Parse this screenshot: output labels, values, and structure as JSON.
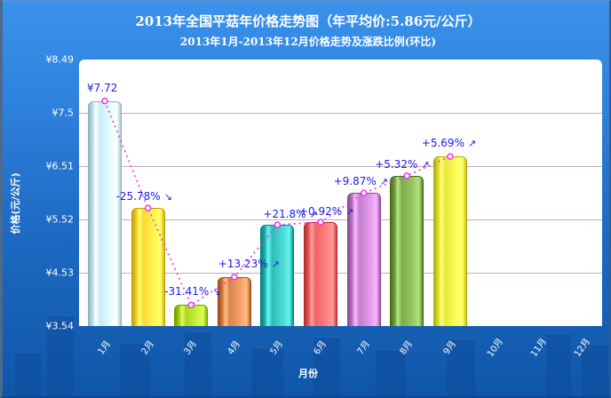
{
  "chart": {
    "title": "2013年全国平菇年价格走势图（年平均价:5.86元/公斤）",
    "subtitle": "2013年1月-2013年12月价格走势及涨跌比例(环比)",
    "ylabel": "价格(元/公斤)",
    "xlabel": "月份",
    "first_value_label": "¥7.72"
  },
  "chart_data": {
    "type": "bar",
    "title": "2013年全国平菇年价格走势图（年平均价:5.86元/公斤）",
    "subtitle": "2013年1月-2013年12月价格走势及涨跌比例(环比)",
    "xlabel": "月份",
    "ylabel": "价格(元/公斤)",
    "categories": [
      "1月",
      "2月",
      "3月",
      "4月",
      "5月",
      "6月",
      "7月",
      "8月",
      "9月",
      "10月",
      "11月",
      "12月"
    ],
    "values": [
      7.72,
      5.73,
      3.93,
      4.45,
      5.42,
      5.47,
      6.01,
      6.33,
      6.69,
      null,
      null,
      null
    ],
    "change_labels": [
      "¥7.72",
      "-25.78%",
      "-31.41%",
      "+13.23%",
      "+21.8%",
      "+0.92%",
      "+9.87%",
      "+5.32%",
      "+5.69%",
      "",
      "",
      ""
    ],
    "change_direction": [
      "",
      "down",
      "down",
      "up",
      "up",
      "up",
      "up",
      "up",
      "up",
      "",
      "",
      ""
    ],
    "yticks": [
      "¥3.54",
      "¥4.53",
      "¥5.52",
      "¥6.51",
      "¥7.5",
      "¥8.49"
    ],
    "ylim": [
      3.54,
      8.49
    ],
    "grid": true,
    "legend": null,
    "overlay_line": {
      "type": "line",
      "style": "dotted",
      "color": "#ee33ee",
      "values": [
        7.72,
        5.73,
        3.93,
        4.45,
        5.42,
        5.47,
        6.01,
        6.33,
        6.69
      ]
    },
    "bar_colors": [
      "#c8ecfa",
      "#fdd835",
      "#a8d81e",
      "#d9844a",
      "#2ebdb8",
      "#ef6464",
      "#c47fcf",
      "#7cab4a",
      "#e8e83a"
    ]
  },
  "colors": {
    "background": "#2f82de",
    "plot_bg": "#ffffff",
    "grid": "#c9aac0",
    "label_blue": "#1a1ae6",
    "trend_line": "#ee33ee"
  }
}
